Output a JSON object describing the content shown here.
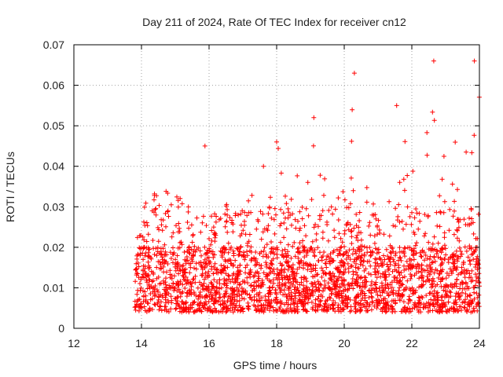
{
  "chart_data": {
    "type": "scatter",
    "title": "Day 211 of 2024, Rate Of TEC Index for receiver cn12",
    "xlabel": "GPS time / hours",
    "ylabel": "ROTI / TECUs",
    "xlim": [
      12,
      24
    ],
    "ylim": [
      0,
      0.07
    ],
    "x_ticks": [
      "12",
      "14",
      "16",
      "18",
      "20",
      "22",
      "24"
    ],
    "y_ticks": [
      "0",
      "0.01",
      "0.02",
      "0.03",
      "0.04",
      "0.05",
      "0.06",
      "0.07"
    ],
    "grid": true,
    "marker": "+",
    "color": "#ff0000",
    "data_x_range": [
      13.8,
      24.0
    ],
    "series": [
      {
        "name": "ROTI",
        "envelope_x": [
          13.8,
          14.0,
          14.3,
          14.5,
          15.0,
          15.5,
          15.85,
          16.0,
          16.5,
          17.0,
          17.4,
          18.0,
          18.5,
          19.0,
          19.1,
          19.5,
          20.0,
          20.3,
          20.5,
          21.0,
          21.5,
          21.7,
          22.0,
          22.3,
          22.6,
          22.8,
          23.0,
          23.5,
          23.9,
          24.0
        ],
        "envelope_y": [
          0.024,
          0.028,
          0.037,
          0.032,
          0.036,
          0.029,
          0.045,
          0.028,
          0.031,
          0.029,
          0.04,
          0.046,
          0.043,
          0.04,
          0.052,
          0.038,
          0.034,
          0.063,
          0.037,
          0.032,
          0.037,
          0.055,
          0.047,
          0.054,
          0.066,
          0.05,
          0.046,
          0.048,
          0.066,
          0.06
        ],
        "bulk_band": [
          0.004,
          0.02
        ],
        "notable_points": [
          {
            "x": 15.88,
            "y": 0.045
          },
          {
            "x": 18.0,
            "y": 0.046
          },
          {
            "x": 19.1,
            "y": 0.052
          },
          {
            "x": 20.3,
            "y": 0.063
          },
          {
            "x": 21.55,
            "y": 0.055
          },
          {
            "x": 22.65,
            "y": 0.066
          },
          {
            "x": 23.85,
            "y": 0.066
          }
        ]
      }
    ]
  }
}
